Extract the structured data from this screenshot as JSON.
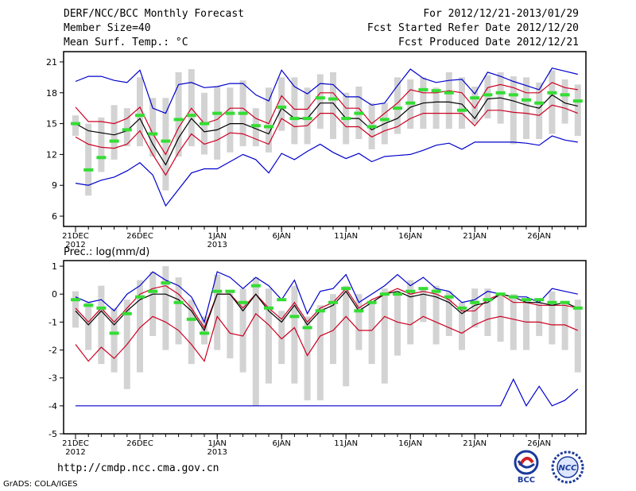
{
  "header": {
    "title": "DERF/NCC/BCC Monthly Forecast",
    "member_size": "Member Size=40",
    "variable": "Mean Surf. Temp.: °C",
    "period": "For 2012/12/21-2013/01/29",
    "start_date": "Fcst Started Refer Date 2012/12/20",
    "produced": "Fcst Produced Date 2012/12/21"
  },
  "footer": {
    "url": "http://cmdp.ncc.cma.gov.cn",
    "grads": "GrADS: COLA/IGES",
    "logo_bcc": "BCC",
    "logo_ncc": "NCC"
  },
  "colors": {
    "envelope": "#0000cc",
    "spread": "#cc0022",
    "mean": "#000000",
    "box": "#d3d3d3",
    "median": "#33dd33"
  },
  "chart_data": [
    {
      "type": "line",
      "title": "Mean Surf. Temp.: °C",
      "ylim": [
        5,
        22
      ],
      "yticks": [
        "6",
        "9",
        "12",
        "15",
        "18",
        "21"
      ],
      "xtick_labels": [
        {
          "label": "21DEC",
          "sub": "2012",
          "index": 0
        },
        {
          "label": "26DEC",
          "sub": "",
          "index": 5
        },
        {
          "label": "1JAN",
          "sub": "2013",
          "index": 11
        },
        {
          "label": "6JAN",
          "sub": "",
          "index": 16
        },
        {
          "label": "11JAN",
          "sub": "",
          "index": 21
        },
        {
          "label": "16JAN",
          "sub": "",
          "index": 26
        },
        {
          "label": "21JAN",
          "sub": "",
          "index": 31
        },
        {
          "label": "26JAN",
          "sub": "",
          "index": 36
        }
      ],
      "series": [
        {
          "name": "max",
          "values": [
            19.1,
            19.6,
            19.6,
            19.2,
            19.0,
            20.2,
            16.5,
            16.0,
            18.8,
            19.0,
            18.5,
            18.6,
            18.9,
            18.9,
            17.8,
            17.2,
            20.2,
            18.6,
            17.9,
            18.9,
            18.8,
            17.6,
            17.6,
            16.8,
            17.0,
            18.7,
            20.3,
            19.4,
            19.0,
            19.2,
            19.3,
            17.9,
            20.0,
            19.6,
            19.1,
            18.7,
            18.3,
            20.4,
            20.1,
            19.8
          ]
        },
        {
          "name": "upper",
          "values": [
            16.6,
            15.2,
            15.2,
            15.0,
            15.5,
            16.6,
            14.0,
            12.0,
            14.6,
            16.5,
            15.0,
            15.4,
            16.5,
            16.5,
            15.5,
            15.0,
            17.7,
            16.4,
            16.4,
            18.0,
            18.0,
            16.5,
            16.5,
            15.0,
            16.0,
            17.0,
            18.3,
            18.0,
            18.0,
            18.2,
            18.0,
            16.5,
            18.5,
            18.8,
            18.5,
            18.0,
            18.0,
            19.0,
            18.5,
            18.3
          ]
        },
        {
          "name": "mean",
          "values": [
            15.0,
            14.3,
            14.1,
            13.9,
            14.3,
            15.5,
            13.0,
            11.0,
            13.6,
            15.5,
            14.2,
            14.4,
            15.0,
            15.0,
            14.5,
            14.0,
            16.5,
            15.5,
            15.5,
            17.0,
            17.0,
            15.5,
            15.5,
            14.4,
            15.0,
            15.5,
            16.6,
            17.0,
            17.1,
            17.1,
            16.9,
            15.5,
            17.4,
            17.5,
            17.2,
            16.8,
            16.5,
            17.8,
            17.0,
            16.7
          ]
        },
        {
          "name": "lower",
          "values": [
            13.7,
            13.0,
            12.7,
            12.6,
            13.0,
            14.3,
            12.0,
            10.0,
            12.2,
            14.0,
            13.0,
            13.4,
            14.1,
            14.0,
            13.5,
            13.0,
            15.5,
            14.7,
            14.8,
            16.0,
            16.0,
            14.7,
            14.7,
            13.7,
            14.3,
            14.7,
            15.5,
            16.0,
            16.0,
            16.0,
            16.0,
            14.8,
            16.3,
            16.3,
            16.1,
            16.0,
            15.8,
            16.8,
            16.5,
            16.0
          ]
        },
        {
          "name": "min",
          "values": [
            9.2,
            9.0,
            9.5,
            9.8,
            10.4,
            11.2,
            10.0,
            7.0,
            8.6,
            10.2,
            10.6,
            10.6,
            11.3,
            12.0,
            11.5,
            10.2,
            12.1,
            11.5,
            12.3,
            13.0,
            12.2,
            11.6,
            12.1,
            11.3,
            11.8,
            11.9,
            12.0,
            12.4,
            12.9,
            13.1,
            12.5,
            13.2,
            13.2,
            13.2,
            13.2,
            13.1,
            12.9,
            13.8,
            13.4,
            13.2
          ]
        },
        {
          "name": "box_top",
          "values": [
            15.8,
            15.0,
            15.6,
            16.8,
            16.5,
            19.5,
            17.5,
            17.5,
            20.0,
            20.3,
            18.0,
            18.6,
            18.5,
            19.2,
            16.5,
            18.5,
            19.5,
            19.5,
            18.5,
            19.8,
            20.0,
            18.0,
            18.6,
            17.0,
            17.0,
            19.5,
            19.3,
            19.5,
            18.5,
            20.0,
            19.5,
            18.6,
            19.7,
            20.0,
            19.6,
            19.5,
            19.0,
            20.2,
            19.3,
            18.8
          ]
        },
        {
          "name": "box_bottom",
          "values": [
            13.8,
            8.0,
            10.3,
            11.5,
            12.8,
            12.8,
            11.8,
            8.5,
            11.8,
            12.8,
            12.0,
            11.5,
            12.2,
            12.8,
            12.8,
            12.2,
            14.3,
            13.0,
            13.0,
            14.5,
            13.5,
            13.0,
            13.5,
            12.5,
            13.0,
            14.0,
            14.5,
            14.5,
            14.5,
            14.5,
            14.5,
            15.0,
            15.5,
            15.0,
            13.0,
            13.5,
            13.5,
            14.0,
            15.0,
            13.8
          ]
        },
        {
          "name": "median",
          "values": [
            15.0,
            10.5,
            11.7,
            13.3,
            14.4,
            15.8,
            14.0,
            13.3,
            15.4,
            15.8,
            15.0,
            16.0,
            16.0,
            16.0,
            14.8,
            14.7,
            16.6,
            15.5,
            15.5,
            17.5,
            17.4,
            15.5,
            16.0,
            14.7,
            15.4,
            16.5,
            17.0,
            18.3,
            18.2,
            18.0,
            16.3,
            17.5,
            17.8,
            18.0,
            17.8,
            17.3,
            17.0,
            18.0,
            17.8,
            17.2
          ]
        }
      ]
    },
    {
      "type": "line",
      "title": "Prec.: log(mm/d)",
      "ylim": [
        -5,
        1.2
      ],
      "yticks": [
        "-5",
        "-4",
        "-3",
        "-2",
        "-1",
        "0",
        "1"
      ],
      "xtick_labels": [
        {
          "label": "21DEC",
          "sub": "2012",
          "index": 0
        },
        {
          "label": "26DEC",
          "sub": "",
          "index": 5
        },
        {
          "label": "1JAN",
          "sub": "2013",
          "index": 11
        },
        {
          "label": "6JAN",
          "sub": "",
          "index": 16
        },
        {
          "label": "11JAN",
          "sub": "",
          "index": 21
        },
        {
          "label": "16JAN",
          "sub": "",
          "index": 26
        },
        {
          "label": "21JAN",
          "sub": "",
          "index": 31
        },
        {
          "label": "26JAN",
          "sub": "",
          "index": 36
        }
      ],
      "series": [
        {
          "name": "max",
          "values": [
            -0.1,
            -0.3,
            -0.2,
            -0.6,
            0.0,
            0.3,
            0.8,
            0.5,
            0.3,
            -0.1,
            -1.0,
            0.8,
            0.6,
            0.2,
            0.6,
            0.3,
            -0.2,
            0.5,
            -0.7,
            0.1,
            0.2,
            0.7,
            -0.3,
            0.0,
            0.3,
            0.7,
            0.3,
            0.6,
            0.2,
            0.1,
            -0.3,
            -0.2,
            0.1,
            0.0,
            -0.1,
            -0.1,
            -0.3,
            0.2,
            0.1,
            0.0
          ]
        },
        {
          "name": "upper",
          "values": [
            -0.5,
            -1.0,
            -0.5,
            -1.0,
            -0.5,
            0.0,
            0.2,
            0.3,
            0.0,
            -0.5,
            -1.2,
            0.0,
            0.0,
            -0.5,
            0.0,
            -0.5,
            -0.9,
            -0.3,
            -1.0,
            -0.5,
            -0.3,
            0.2,
            -0.5,
            -0.2,
            0.0,
            0.2,
            0.0,
            0.1,
            0.0,
            -0.2,
            -0.6,
            -0.6,
            -0.2,
            0.0,
            -0.3,
            -0.3,
            -0.4,
            -0.4,
            -0.4,
            -0.5
          ]
        },
        {
          "name": "mean",
          "values": [
            -0.6,
            -1.1,
            -0.6,
            -1.1,
            -0.6,
            -0.2,
            0.0,
            0.0,
            -0.2,
            -0.6,
            -1.3,
            0.0,
            0.0,
            -0.6,
            0.0,
            -0.6,
            -1.0,
            -0.4,
            -1.1,
            -0.6,
            -0.4,
            0.1,
            -0.6,
            -0.3,
            0.0,
            0.1,
            -0.1,
            0.0,
            -0.1,
            -0.3,
            -0.7,
            -0.4,
            -0.3,
            0.0,
            -0.1,
            -0.3,
            -0.3,
            -0.4,
            -0.3,
            -0.5
          ]
        },
        {
          "name": "lower",
          "values": [
            -1.8,
            -2.4,
            -1.9,
            -2.3,
            -1.8,
            -1.2,
            -0.8,
            -1.0,
            -1.3,
            -1.8,
            -2.4,
            -0.8,
            -1.4,
            -1.5,
            -0.7,
            -1.1,
            -1.6,
            -1.2,
            -2.2,
            -1.5,
            -1.3,
            -0.8,
            -1.3,
            -1.3,
            -0.8,
            -1.0,
            -1.1,
            -0.8,
            -1.0,
            -1.2,
            -1.4,
            -1.1,
            -0.9,
            -0.8,
            -0.9,
            -1.0,
            -1.0,
            -1.1,
            -1.1,
            -1.3
          ]
        },
        {
          "name": "min",
          "values": [
            -4,
            -4,
            -4,
            -4,
            -4,
            -4,
            -4,
            -4,
            -4,
            -4,
            -4,
            -4,
            -4,
            -4,
            -4,
            -4,
            -4,
            -4,
            -4,
            -4,
            -4,
            -4,
            -4,
            -4,
            -4,
            -4,
            -4,
            -4,
            -4,
            -4,
            -4,
            -4,
            -4,
            -4,
            -3.05,
            -4.0,
            -3.3,
            -4.0,
            -3.8,
            -3.4
          ]
        },
        {
          "name": "box_top",
          "values": [
            0.1,
            -0.3,
            0.3,
            -0.5,
            -0.2,
            0.5,
            0.8,
            1.0,
            0.6,
            -0.2,
            -0.8,
            0.7,
            0.1,
            0.2,
            0.6,
            0.2,
            -0.6,
            0.3,
            -0.8,
            -0.4,
            0.0,
            0.3,
            0.0,
            -0.3,
            0.2,
            0.1,
            0.5,
            0.2,
            0.3,
            0.1,
            -0.3,
            0.2,
            0.2,
            0.0,
            0.0,
            -0.2,
            -0.3,
            0.1,
            -0.3,
            -0.2
          ]
        },
        {
          "name": "box_bottom",
          "values": [
            -1.2,
            -2.0,
            -2.5,
            -2.8,
            -3.4,
            -2.8,
            -1.5,
            -2.0,
            -1.8,
            -2.5,
            -1.8,
            -2.0,
            -2.3,
            -2.8,
            -4.0,
            -3.2,
            -2.5,
            -3.2,
            -3.8,
            -3.8,
            -2.5,
            -3.3,
            -2.0,
            -2.5,
            -3.2,
            -2.2,
            -1.8,
            -1.0,
            -1.8,
            -1.5,
            -2.0,
            -1.2,
            -1.5,
            -1.7,
            -2.0,
            -2.0,
            -1.5,
            -1.8,
            -2.0,
            -2.8
          ]
        },
        {
          "name": "median",
          "values": [
            -0.2,
            -0.4,
            -0.5,
            -1.4,
            -0.7,
            -0.1,
            0.1,
            0.4,
            -0.3,
            -0.9,
            -1.4,
            0.1,
            0.1,
            -0.3,
            0.3,
            -0.5,
            -0.2,
            -0.8,
            -1.2,
            -0.6,
            -0.3,
            0.2,
            -0.6,
            -0.3,
            0.0,
            0.0,
            0.1,
            0.2,
            0.1,
            -0.1,
            -0.5,
            -0.3,
            -0.2,
            0.0,
            -0.1,
            -0.2,
            -0.2,
            -0.3,
            -0.3,
            -0.5
          ]
        }
      ]
    }
  ]
}
